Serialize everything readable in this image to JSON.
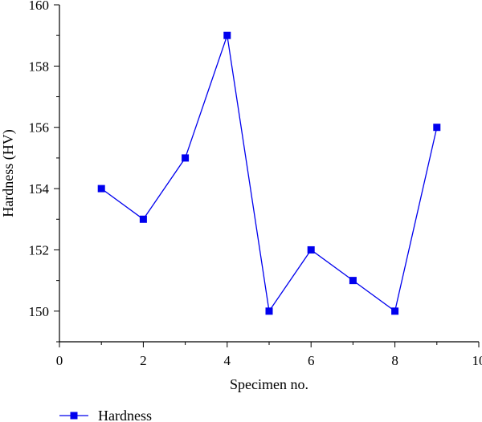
{
  "chart_data": {
    "type": "line",
    "title": "",
    "xlabel": "Specimen no.",
    "ylabel": "Hardness (HV)",
    "xlim": [
      0,
      10
    ],
    "ylim": [
      149,
      160
    ],
    "x_ticks": [
      0,
      2,
      4,
      6,
      8,
      10
    ],
    "y_ticks": [
      150,
      152,
      154,
      156,
      158,
      160
    ],
    "grid": false,
    "legend_position": "bottom-left",
    "series": [
      {
        "name": "Hardness",
        "color": "#0000ee",
        "marker": "square",
        "x": [
          1,
          2,
          3,
          4,
          5,
          6,
          7,
          8,
          9
        ],
        "y": [
          154,
          153,
          155,
          159,
          150,
          152,
          151,
          150,
          156
        ]
      }
    ]
  }
}
